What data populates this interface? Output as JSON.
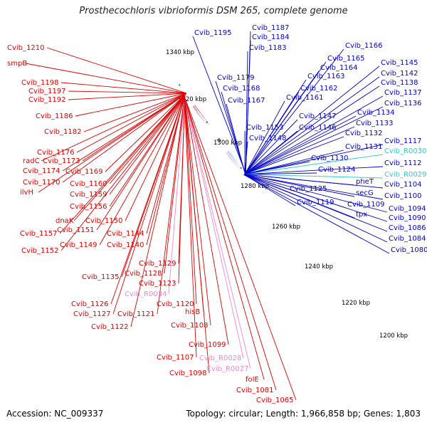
{
  "title": "Prosthecochloris vibrioformis DSM 265, complete genome",
  "accession": "Accession: NC_009337",
  "topology": "Topology: circular; Length: 1,966,858 bp; Genes: 1,803",
  "colors": {
    "left_label": "#dd0000",
    "right_label": "#0000cc",
    "rna_right": "#33cccc",
    "rna_left": "#ee88cc",
    "backbone": "#888888",
    "tick_dots": "#228822"
  },
  "kbp_ticks": [
    "1340 kbp",
    "1320 kbp",
    "1300 kbp",
    "1280 kbp",
    "1260 kbp",
    "1240 kbp",
    "1220 kbp",
    "1200 kbp"
  ],
  "left_labels": [
    {
      "text": "Cvib_1210",
      "kind": "gene"
    },
    {
      "text": "smpB",
      "kind": "gene"
    },
    {
      "text": "Cvib_1198",
      "kind": "gene"
    },
    {
      "text": "Cvib_1197",
      "kind": "gene"
    },
    {
      "text": "Cvib_1192",
      "kind": "gene"
    },
    {
      "text": "Cvib_1186",
      "kind": "gene"
    },
    {
      "text": "Cvib_1182",
      "kind": "gene"
    },
    {
      "text": "Cvib_1176",
      "kind": "gene"
    },
    {
      "text": "radC",
      "kind": "gene"
    },
    {
      "text": "Cvib_1173",
      "kind": "gene"
    },
    {
      "text": "Cvib_1174",
      "kind": "gene"
    },
    {
      "text": "Cvib_1169",
      "kind": "gene"
    },
    {
      "text": "Cvib_1170",
      "kind": "gene"
    },
    {
      "text": "ilvH",
      "kind": "gene"
    },
    {
      "text": "Cvib_1160",
      "kind": "gene"
    },
    {
      "text": "Cvib_1159",
      "kind": "gene"
    },
    {
      "text": "Cvib_1156",
      "kind": "gene"
    },
    {
      "text": "dnaK",
      "kind": "gene"
    },
    {
      "text": "Cvib_1150",
      "kind": "gene"
    },
    {
      "text": "Cvib_1151",
      "kind": "gene"
    },
    {
      "text": "Cvib_1157",
      "kind": "gene"
    },
    {
      "text": "Cvib_1144",
      "kind": "gene"
    },
    {
      "text": "Cvib_1149",
      "kind": "gene"
    },
    {
      "text": "Cvib_1140",
      "kind": "gene"
    },
    {
      "text": "Cvib_1152",
      "kind": "gene"
    },
    {
      "text": "Cvib_1129",
      "kind": "gene"
    },
    {
      "text": "Cvib_1128",
      "kind": "gene"
    },
    {
      "text": "Cvib_1135",
      "kind": "gene"
    },
    {
      "text": "Cvib_1123",
      "kind": "gene"
    },
    {
      "text": "Cvib_R0034",
      "kind": "rna"
    },
    {
      "text": "Cvib_1126",
      "kind": "gene"
    },
    {
      "text": "Cvib_1120",
      "kind": "gene"
    },
    {
      "text": "Cvib_1127",
      "kind": "gene"
    },
    {
      "text": "Cvib_1121",
      "kind": "gene"
    },
    {
      "text": "hisB",
      "kind": "gene"
    },
    {
      "text": "Cvib_1122",
      "kind": "gene"
    },
    {
      "text": "Cvib_1108",
      "kind": "gene"
    },
    {
      "text": "Cvib_1099",
      "kind": "gene"
    },
    {
      "text": "Cvib_1107",
      "kind": "gene"
    },
    {
      "text": "Cvib_R0028",
      "kind": "rna"
    },
    {
      "text": "Cvib_R0027",
      "kind": "rna"
    },
    {
      "text": "Cvib_1098",
      "kind": "gene"
    },
    {
      "text": "folE",
      "kind": "gene"
    },
    {
      "text": "Cvib_1081",
      "kind": "gene"
    },
    {
      "text": "Cvib_1065",
      "kind": "gene"
    }
  ],
  "right_labels": [
    {
      "text": "Cvib_1187",
      "kind": "gene"
    },
    {
      "text": "Cvib_1195",
      "kind": "gene"
    },
    {
      "text": "Cvib_1184",
      "kind": "gene"
    },
    {
      "text": "Cvib_1183",
      "kind": "gene"
    },
    {
      "text": "Cvib_1166",
      "kind": "gene"
    },
    {
      "text": "Cvib_1165",
      "kind": "gene"
    },
    {
      "text": "Cvib_1164",
      "kind": "gene"
    },
    {
      "text": "Cvib_1145",
      "kind": "gene"
    },
    {
      "text": "Cvib_1179",
      "kind": "gene"
    },
    {
      "text": "Cvib_1163",
      "kind": "gene"
    },
    {
      "text": "Cvib_1142",
      "kind": "gene"
    },
    {
      "text": "Cvib_1168",
      "kind": "gene"
    },
    {
      "text": "Cvib_1162",
      "kind": "gene"
    },
    {
      "text": "Cvib_1138",
      "kind": "gene"
    },
    {
      "text": "Cvib_1137",
      "kind": "gene"
    },
    {
      "text": "Cvib_1167",
      "kind": "gene"
    },
    {
      "text": "Cvib_1161",
      "kind": "gene"
    },
    {
      "text": "Cvib_1136",
      "kind": "gene"
    },
    {
      "text": "Cvib_1134",
      "kind": "gene"
    },
    {
      "text": "Cvib_1147",
      "kind": "gene"
    },
    {
      "text": "Cvib_1133",
      "kind": "gene"
    },
    {
      "text": "Cvib_1153",
      "kind": "gene"
    },
    {
      "text": "Cvib_1146",
      "kind": "gene"
    },
    {
      "text": "Cvib_1132",
      "kind": "gene"
    },
    {
      "text": "Cvib_1148",
      "kind": "gene"
    },
    {
      "text": "Cvib_1117",
      "kind": "gene"
    },
    {
      "text": "Cvib_1131",
      "kind": "gene"
    },
    {
      "text": "Cvib_R0030",
      "kind": "rna"
    },
    {
      "text": "Cvib_1130",
      "kind": "gene"
    },
    {
      "text": "Cvib_1112",
      "kind": "gene"
    },
    {
      "text": "Cvib_1124",
      "kind": "gene"
    },
    {
      "text": "Cvib_R0029",
      "kind": "rna"
    },
    {
      "text": "pheT",
      "kind": "gene"
    },
    {
      "text": "Cvib_1104",
      "kind": "gene"
    },
    {
      "text": "Cvib_1125",
      "kind": "gene"
    },
    {
      "text": "secG",
      "kind": "gene"
    },
    {
      "text": "Cvib_1100",
      "kind": "gene"
    },
    {
      "text": "Cvib_1119",
      "kind": "gene"
    },
    {
      "text": "Cvib_1109",
      "kind": "gene"
    },
    {
      "text": "Cvib_1094",
      "kind": "gene"
    },
    {
      "text": "tpx",
      "kind": "gene"
    },
    {
      "text": "Cvib_1090",
      "kind": "gene"
    },
    {
      "text": "Cvib_1086",
      "kind": "gene"
    },
    {
      "text": "Cvib_1084",
      "kind": "gene"
    },
    {
      "text": "Cvib_1080",
      "kind": "gene"
    }
  ]
}
